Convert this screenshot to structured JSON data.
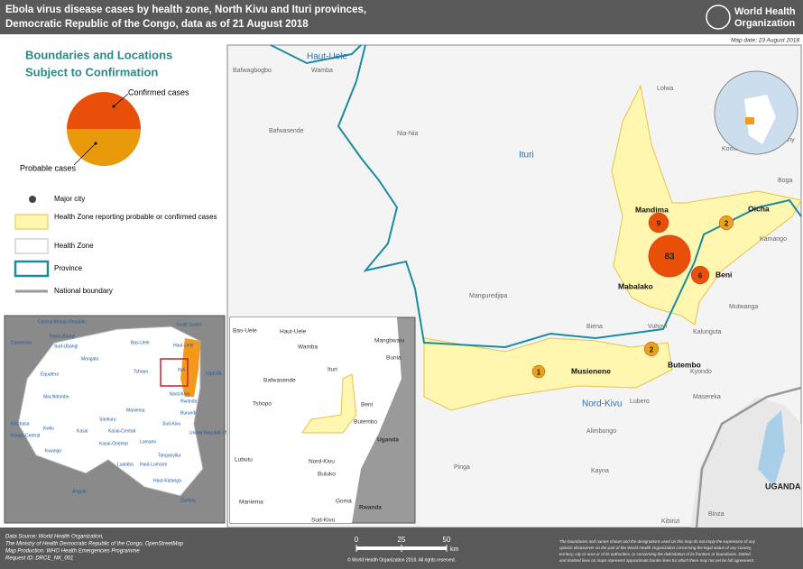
{
  "header": {
    "title_lines": [
      "Ebola virus disease cases by health zone, North Kivu and Ituri provinces,",
      "Democratic Republic of the Congo, data as of 21 August 2018"
    ],
    "organization": [
      "World Health",
      "Organization"
    ],
    "map_date": "Map date: 23 August 2018"
  },
  "legend": {
    "title_lines": [
      "Boundaries and Locations",
      "Subject to Confirmation"
    ],
    "confirmed": "Confirmed cases",
    "probable": "Probable cases",
    "items": [
      "Major city",
      "Health Zone reporting probable or confirmed cases",
      "Health Zone",
      "Province",
      "National boundary"
    ]
  },
  "main_map": {
    "provinces": [
      "Haut-Uele",
      "Ituri",
      "Nord-Kivu"
    ],
    "country": "UGANDA",
    "places": [
      "Bafwagbogbo",
      "Wamba",
      "Bafwasende",
      "Nia-Nia",
      "Lolwa",
      "Komanda",
      "Gethy",
      "Boga",
      "Kamango",
      "Mutwanga",
      "Kalunguta",
      "Biena",
      "Vuhovi",
      "Manguredjipa",
      "Kyondo",
      "Masereka",
      "Lubero",
      "Alimbongo",
      "Pinga",
      "Kayna",
      "Kibirizi",
      "Binza"
    ],
    "health_zones": [
      {
        "name": "Mandima",
        "cases": 9
      },
      {
        "name": "Oicha",
        "cases": 2
      },
      {
        "name": "Mabalako",
        "cases": 83
      },
      {
        "name": "Beni",
        "cases": 6
      },
      {
        "name": "Butembo",
        "cases": 2
      },
      {
        "name": "Musienene",
        "cases": 1
      }
    ]
  },
  "inset_map": {
    "labels": [
      "Bas-Uele",
      "Haut-Uele",
      "Wamba",
      "Mangbwalu",
      "Bunia",
      "Ituri",
      "Bafwasende",
      "Tshopo",
      "Beni",
      "Butembo",
      "Uganda",
      "Lubutu",
      "Nord-Kivu",
      "Buluko",
      "Maniema",
      "Goma",
      "Rwanda",
      "Sud-Kivu"
    ]
  },
  "country_map": {
    "labels": [
      "Central African Republic",
      "South Sudan",
      "Cameroon",
      "Nord-Ubangi",
      "Sud-Ubangi",
      "Bas-Uele",
      "Haut-Uele",
      "Mongala",
      "Tshopo",
      "Ituri",
      "Uganda",
      "Equateur",
      "Nord-Kivu",
      "Rwanda",
      "Burundi",
      "Mai-Ndombe",
      "Maniema",
      "Sankuru",
      "Sud-Kivu",
      "Kinshasa",
      "Kwilu",
      "Kasai",
      "Kasai-Central",
      "Kasai-Oriental",
      "Lomami",
      "United Republic of Tanzania",
      "Kongo-Central",
      "Kwango",
      "Tanganyika",
      "Lualaba",
      "Haut-Lomami",
      "Haut-Katanga",
      "Angola",
      "Zambia"
    ]
  },
  "scale": {
    "ticks": [
      0,
      25,
      50
    ],
    "unit": "km"
  },
  "footer": {
    "left_lines": [
      "Data Source: World Health Organization,",
      "The Ministry of Health Democratic Republic of the Congo, OpenStreetMap",
      "Map Production: WHO Health Emergencies Programme",
      "Request ID: DRCE_NK_001"
    ],
    "copyright": "© World Health Organization 2018. All rights reserved.",
    "disclaimer_lines": [
      "The boundaries and names shown and the designations used on this map do not imply the expression of any",
      "opinion whatsoever on the part of the World Health Organization concerning the legal status of any country,",
      "territory, city or area or of its authorities, or concerning the delimitation of its frontiers or boundaries. Dotted",
      "and dashed lines on maps represent approximate border lines for which there may not yet be full agreement."
    ]
  }
}
